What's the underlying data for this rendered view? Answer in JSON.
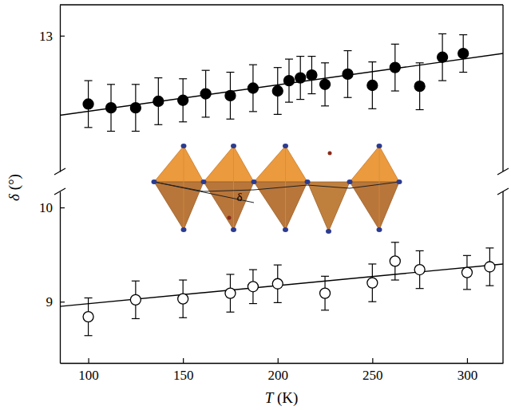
{
  "chart_data": {
    "type": "scatter",
    "x_label": "T (K)",
    "y_label": "δ (°)",
    "xlim": [
      85,
      319
    ],
    "xticks": [
      100,
      150,
      200,
      250,
      300
    ],
    "y_segments": [
      {
        "ylim": [
          11.55,
          13.33
        ],
        "yticks": [
          13
        ]
      },
      {
        "ylim": [
          8.35,
          10.17
        ],
        "yticks": [
          9,
          10
        ]
      }
    ],
    "grid": false,
    "annotations": [
      {
        "text": "δ"
      }
    ],
    "series": [
      {
        "color": "#000000",
        "marker": "filled-circle",
        "y_segment": 0,
        "x": [
          100,
          112,
          125,
          137,
          150,
          162,
          175,
          187,
          200,
          206,
          212,
          218,
          225,
          237,
          250,
          262,
          275,
          287,
          298
        ],
        "values": [
          12.27,
          12.23,
          12.23,
          12.3,
          12.31,
          12.38,
          12.36,
          12.44,
          12.41,
          12.52,
          12.55,
          12.58,
          12.48,
          12.59,
          12.47,
          12.66,
          12.46,
          12.77,
          12.81
        ],
        "errors": [
          0.25,
          0.25,
          0.25,
          0.25,
          0.23,
          0.25,
          0.25,
          0.25,
          0.25,
          0.23,
          0.23,
          0.2,
          0.23,
          0.25,
          0.25,
          0.25,
          0.25,
          0.25,
          0.2
        ],
        "fit": {
          "x": [
            85,
            319
          ],
          "values": [
            12.15,
            12.81
          ]
        }
      },
      {
        "color": "#000000",
        "marker": "open-circle",
        "y_segment": 1,
        "x": [
          100,
          125,
          150,
          175,
          187,
          200,
          225,
          250,
          262,
          275,
          300,
          312
        ],
        "values": [
          8.84,
          9.02,
          9.03,
          9.09,
          9.16,
          9.19,
          9.09,
          9.2,
          9.43,
          9.34,
          9.31,
          9.37
        ],
        "errors": [
          0.2,
          0.2,
          0.2,
          0.2,
          0.18,
          0.2,
          0.18,
          0.2,
          0.2,
          0.2,
          0.18,
          0.2
        ],
        "fit": {
          "x": [
            85,
            319
          ],
          "values": [
            8.95,
            9.4
          ]
        }
      }
    ]
  }
}
